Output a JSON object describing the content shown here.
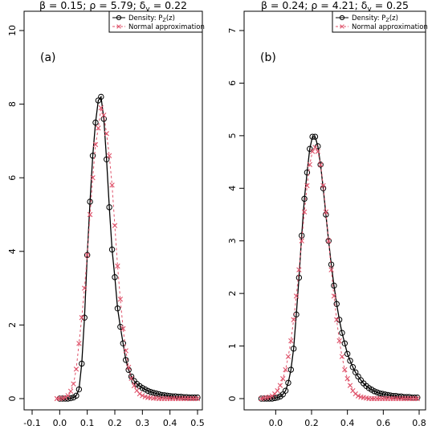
{
  "chart_data": [
    {
      "type": "line",
      "title": "β = 0.15;  ρ = 5.79;  δ",
      "title_sub": "y",
      "title_tail": " = 0.22",
      "panel_label": "(a)",
      "xlim": [
        -0.1,
        0.5
      ],
      "ylim": [
        0,
        10
      ],
      "x_ticks": [
        -0.1,
        0.0,
        0.1,
        0.2,
        0.3,
        0.4,
        0.5
      ],
      "x_tick_labels": [
        "-0.1",
        "0.0",
        "0.1",
        "0.2",
        "0.3",
        "0.4",
        "0.5"
      ],
      "y_ticks": [
        0,
        2,
        4,
        6,
        8,
        10
      ],
      "y_tick_labels": [
        "0",
        "2",
        "4",
        "6",
        "8",
        "10"
      ],
      "legend": {
        "position": "top-right",
        "entries": [
          {
            "label": "Density:  P",
            "sub": "Z",
            "tail": "(z)",
            "color": "#000000",
            "marker": "circle",
            "linestyle": "solid"
          },
          {
            "label": "Normal approximation",
            "sub": "",
            "tail": "",
            "color": "#DF536B",
            "marker": "x",
            "linestyle": "dashed"
          }
        ]
      },
      "series": [
        {
          "name": "Density:  PZ(z)",
          "color": "#000000",
          "x": [
            0.0,
            0.01,
            0.02,
            0.03,
            0.04,
            0.05,
            0.06,
            0.07,
            0.08,
            0.09,
            0.1,
            0.11,
            0.12,
            0.13,
            0.14,
            0.15,
            0.16,
            0.17,
            0.18,
            0.19,
            0.2,
            0.21,
            0.22,
            0.23,
            0.24,
            0.25,
            0.26,
            0.27,
            0.28,
            0.29,
            0.3,
            0.31,
            0.32,
            0.33,
            0.34,
            0.35,
            0.36,
            0.37,
            0.38,
            0.39,
            0.4,
            0.41,
            0.42,
            0.43,
            0.44,
            0.45,
            0.46,
            0.47,
            0.48,
            0.49,
            0.5
          ],
          "y": [
            0.0,
            0.0,
            0.0,
            0.0,
            0.01,
            0.03,
            0.08,
            0.25,
            0.95,
            2.2,
            3.9,
            5.35,
            6.6,
            7.5,
            8.1,
            8.2,
            7.6,
            6.5,
            5.2,
            4.05,
            3.3,
            2.45,
            1.95,
            1.5,
            1.05,
            0.78,
            0.6,
            0.48,
            0.4,
            0.34,
            0.29,
            0.25,
            0.21,
            0.18,
            0.16,
            0.14,
            0.12,
            0.1,
            0.09,
            0.08,
            0.07,
            0.06,
            0.06,
            0.05,
            0.05,
            0.04,
            0.04,
            0.03,
            0.03,
            0.03,
            0.03
          ]
        },
        {
          "name": "Normal approximation",
          "color": "#DF536B",
          "x": [
            -0.01,
            0.0,
            0.01,
            0.02,
            0.03,
            0.04,
            0.05,
            0.06,
            0.07,
            0.08,
            0.09,
            0.1,
            0.11,
            0.12,
            0.13,
            0.14,
            0.15,
            0.16,
            0.17,
            0.18,
            0.19,
            0.2,
            0.21,
            0.22,
            0.23,
            0.24,
            0.25,
            0.26,
            0.27,
            0.28,
            0.29,
            0.3,
            0.31,
            0.32,
            0.33,
            0.34,
            0.35,
            0.36,
            0.37,
            0.38,
            0.39,
            0.4,
            0.41,
            0.42,
            0.43,
            0.44,
            0.45,
            0.46,
            0.47,
            0.48,
            0.49,
            0.5
          ],
          "y": [
            0.0,
            0.0,
            0.01,
            0.03,
            0.08,
            0.2,
            0.4,
            0.8,
            1.5,
            2.2,
            3.0,
            3.9,
            5.0,
            6.0,
            6.9,
            7.35,
            7.9,
            7.7,
            7.2,
            6.6,
            5.8,
            4.7,
            3.6,
            2.7,
            1.9,
            1.3,
            0.85,
            0.55,
            0.35,
            0.22,
            0.13,
            0.08,
            0.05,
            0.03,
            0.02,
            0.01,
            0.01,
            0.0,
            0.0,
            0.0,
            0.0,
            0.0,
            0.0,
            0.0,
            0.0,
            0.0,
            0.0,
            0.0,
            0.0,
            0.0,
            0.0,
            0.0
          ]
        }
      ]
    },
    {
      "type": "line",
      "title": "β = 0.24;  ρ = 4.21;  δ",
      "title_sub": "y",
      "title_tail": " = 0.25",
      "panel_label": "(b)",
      "xlim": [
        -0.1,
        0.8
      ],
      "ylim": [
        0,
        7
      ],
      "x_ticks": [
        0.0,
        0.2,
        0.4,
        0.6,
        0.8
      ],
      "x_tick_labels": [
        "0.0",
        "0.2",
        "0.4",
        "0.6",
        "0.8"
      ],
      "y_ticks": [
        0,
        1,
        2,
        3,
        4,
        5,
        6,
        7
      ],
      "y_tick_labels": [
        "0",
        "1",
        "2",
        "3",
        "4",
        "5",
        "6",
        "7"
      ],
      "legend": {
        "position": "top-right",
        "entries": [
          {
            "label": "Density:  P",
            "sub": "Z",
            "tail": "(z)",
            "color": "#000000",
            "marker": "circle",
            "linestyle": "solid"
          },
          {
            "label": "Normal approximation",
            "sub": "",
            "tail": "",
            "color": "#DF536B",
            "marker": "x",
            "linestyle": "dashed"
          }
        ]
      },
      "series": [
        {
          "name": "Density:  PZ(z)",
          "color": "#000000",
          "x": [
            -0.08,
            -0.065,
            -0.05,
            -0.035,
            -0.02,
            -0.005,
            0.01,
            0.025,
            0.04,
            0.055,
            0.07,
            0.085,
            0.1,
            0.115,
            0.13,
            0.145,
            0.16,
            0.175,
            0.19,
            0.205,
            0.22,
            0.235,
            0.25,
            0.265,
            0.28,
            0.295,
            0.31,
            0.325,
            0.34,
            0.355,
            0.37,
            0.385,
            0.4,
            0.415,
            0.43,
            0.445,
            0.46,
            0.475,
            0.49,
            0.505,
            0.52,
            0.535,
            0.55,
            0.565,
            0.58,
            0.595,
            0.61,
            0.625,
            0.64,
            0.655,
            0.67,
            0.685,
            0.7,
            0.715,
            0.73,
            0.745,
            0.76,
            0.775,
            0.79
          ],
          "y": [
            0.0,
            0.0,
            0.0,
            0.0,
            0.0,
            0.01,
            0.02,
            0.04,
            0.08,
            0.15,
            0.3,
            0.55,
            0.95,
            1.6,
            2.3,
            3.1,
            3.8,
            4.3,
            4.75,
            4.98,
            4.98,
            4.8,
            4.45,
            4.0,
            3.5,
            3.0,
            2.55,
            2.15,
            1.8,
            1.5,
            1.25,
            1.05,
            0.85,
            0.72,
            0.6,
            0.5,
            0.42,
            0.35,
            0.29,
            0.24,
            0.2,
            0.17,
            0.14,
            0.12,
            0.1,
            0.09,
            0.08,
            0.07,
            0.06,
            0.05,
            0.05,
            0.04,
            0.04,
            0.03,
            0.03,
            0.03,
            0.02,
            0.02,
            0.02
          ]
        },
        {
          "name": "Normal approximation",
          "color": "#DF536B",
          "x": [
            -0.08,
            -0.065,
            -0.05,
            -0.035,
            -0.02,
            -0.005,
            0.01,
            0.025,
            0.04,
            0.055,
            0.07,
            0.085,
            0.1,
            0.115,
            0.13,
            0.145,
            0.16,
            0.175,
            0.19,
            0.205,
            0.22,
            0.235,
            0.25,
            0.265,
            0.28,
            0.295,
            0.31,
            0.325,
            0.34,
            0.355,
            0.37,
            0.385,
            0.4,
            0.415,
            0.43,
            0.445,
            0.46,
            0.475,
            0.49,
            0.505,
            0.52,
            0.535,
            0.55,
            0.565,
            0.58,
            0.595,
            0.61,
            0.625,
            0.64,
            0.655,
            0.67,
            0.685,
            0.7,
            0.715,
            0.73,
            0.745,
            0.76,
            0.775,
            0.79
          ],
          "y": [
            0.0,
            0.01,
            0.02,
            0.03,
            0.05,
            0.09,
            0.15,
            0.25,
            0.38,
            0.55,
            0.8,
            1.1,
            1.5,
            1.95,
            2.45,
            3.0,
            3.55,
            4.05,
            4.45,
            4.7,
            4.78,
            4.7,
            4.45,
            4.05,
            3.55,
            3.0,
            2.45,
            1.95,
            1.5,
            1.1,
            0.8,
            0.55,
            0.38,
            0.25,
            0.15,
            0.09,
            0.05,
            0.03,
            0.02,
            0.01,
            0.0,
            0.0,
            0.0,
            0.0,
            0.0,
            0.0,
            0.0,
            0.0,
            0.0,
            0.0,
            0.0,
            0.0,
            0.0,
            0.0,
            0.0,
            0.0,
            0.0,
            0.0,
            0.0
          ]
        }
      ]
    }
  ]
}
